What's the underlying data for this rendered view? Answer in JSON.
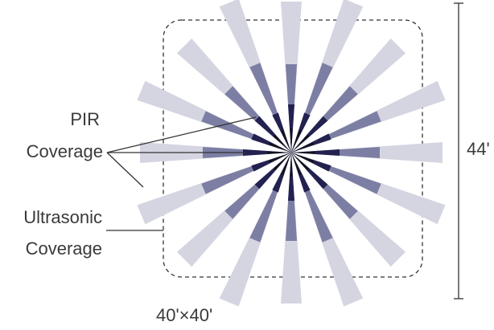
{
  "labels": {
    "pir_line1": "PIR",
    "pir_line2": "Coverage",
    "ultra_line1": "Ultrasonic",
    "ultra_line2": "Coverage",
    "height": "44'",
    "area": "40'×40'"
  },
  "colors": {
    "ultrasonic": "#d5d5e2",
    "pir_mid": "#7c7ea3",
    "pir_dark": "#22214f",
    "black": "#111111",
    "leader": "#333333",
    "dashed": "#333333"
  },
  "beam_angles_deg": [
    0,
    22.5,
    45,
    67.5,
    90,
    112.5,
    135,
    157.5,
    180,
    202.5,
    225,
    247.5,
    270,
    292.5,
    315,
    337.5
  ]
}
